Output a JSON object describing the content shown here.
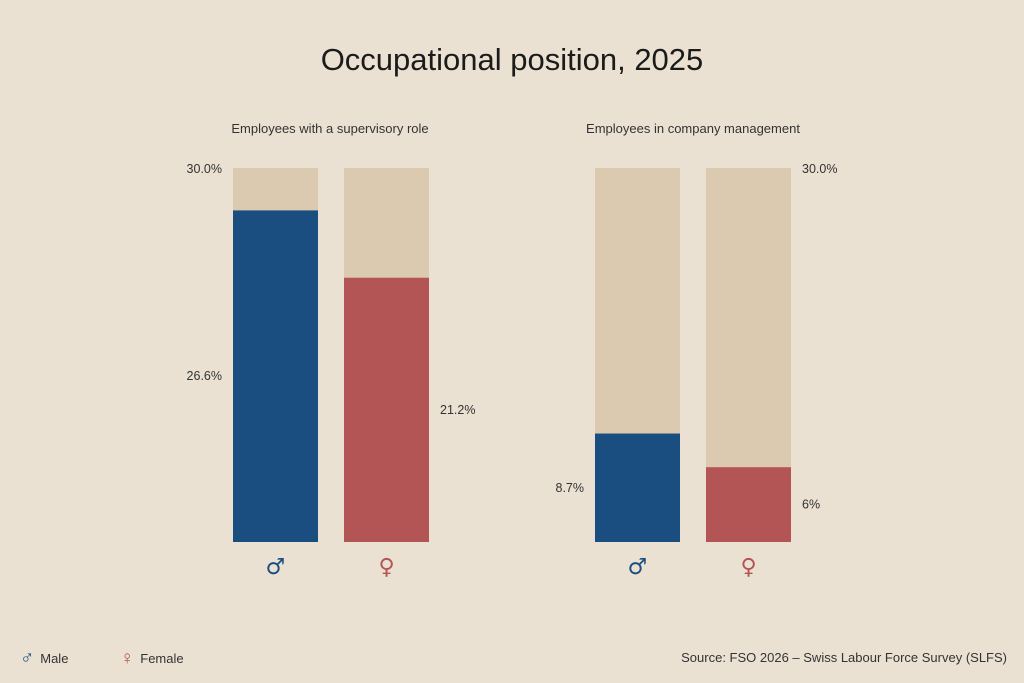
{
  "title": "Occupational position, 2025",
  "source": "Source: FSO 2026 – Swiss Labour Force Survey (SLFS)",
  "legend": [
    {
      "symbol": "♂",
      "label": "Male",
      "color": "#1a4e80"
    },
    {
      "symbol": "♀",
      "label": "Female",
      "color": "#b35555"
    }
  ],
  "colors": {
    "male": "#1a4e80",
    "female": "#b35555",
    "track": "#dccab0",
    "background": "#ebe1d2"
  },
  "chart_data": [
    {
      "type": "bar",
      "title": "Employees with a supervisory role",
      "categories": [
        "♂",
        "♀"
      ],
      "values": [
        26.6,
        21.2
      ],
      "value_labels": [
        "26.6%",
        "21.2%"
      ],
      "ylim": [
        0,
        30
      ],
      "max_label": "30.0%",
      "max_label_side": "left"
    },
    {
      "type": "bar",
      "title": "Employees in company management",
      "categories": [
        "♂",
        "♀"
      ],
      "values": [
        8.7,
        6
      ],
      "value_labels": [
        "8.7%",
        "6%"
      ],
      "ylim": [
        0,
        30
      ],
      "max_label": "30.0%",
      "max_label_side": "right"
    }
  ]
}
